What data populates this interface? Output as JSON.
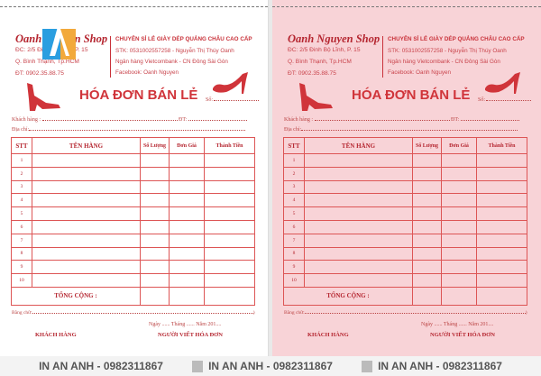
{
  "sheets": [
    {
      "variant": "white"
    },
    {
      "variant": "pink"
    }
  ],
  "shop": {
    "name": "Oanh Nguyen Shop",
    "address": [
      "ĐC: 2/5 Đinh Bộ Lĩnh, P. 15",
      "Q. Bình Thạnh, Tp.HCM",
      "ĐT: 0902.35.88.75"
    ],
    "headline": "CHUYÊN SỈ LẺ GIÀY DÉP QUẢNG CHÂU CAO CẤP",
    "bank": [
      "STK: 0531002557258 - Nguyễn Thị Thúy Oanh",
      "Ngân hàng Vietcombank - CN Đông Sài Gòn",
      "Facebook: Oanh Nguyen"
    ]
  },
  "form": {
    "title": "HÓA ĐƠN BÁN LẺ",
    "so": "Số:",
    "customer": "Khách hàng :",
    "phone": "ĐT:",
    "address": "Địa chỉ:",
    "columns": [
      "STT",
      "TÊN HÀNG",
      "Số Lượng",
      "Đơn Giá",
      "Thành Tiền"
    ],
    "rows": [
      "1",
      "2",
      "3",
      "4",
      "5",
      "6",
      "7",
      "8",
      "9",
      "10"
    ],
    "total": "TỔNG CỘNG :",
    "in_words": "Bằng chữ:",
    "date": "Ngày ...... Tháng ...... Năm 201....",
    "sign_customer": "KHÁCH HÀNG",
    "sign_writer": "NGƯỜI VIẾT HÓA ĐƠN"
  },
  "colors": {
    "red": "#d0343a",
    "pink": "#f8d3d7",
    "logo_blue": "#2a9ee0",
    "logo_orange": "#f2a93b"
  },
  "watermark": [
    "IN AN ANH - 0982311867",
    "IN AN ANH - 0982311867",
    "IN AN ANH - 0982311867"
  ]
}
